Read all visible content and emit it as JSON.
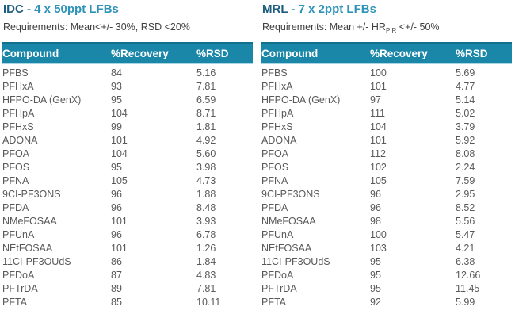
{
  "colors": {
    "header_bg": "#1b87a8",
    "header_top_edge": "#11718f",
    "header_bottom_edge": "#a9d6e3",
    "header_text": "#ffffff",
    "title_prefix": "#1d5e80",
    "title_rest": "#2e93b8",
    "requirements_text": "#3f3f3f",
    "body_text": "#595959",
    "background": "#ffffff"
  },
  "columns": [
    "Compound",
    "%Recovery",
    "%RSD"
  ],
  "tables": [
    {
      "title_prefix": "IDC",
      "title_rest": " - 4 x 50ppt LFBs",
      "requirements": {
        "pre": "Requirements: Mean<+/- 30%, RSD <20%",
        "sub": "",
        "post": ""
      },
      "columns": [
        "Compound",
        "%Recovery",
        "%RSD"
      ],
      "rows": [
        [
          "PFBS",
          "84",
          "5.16"
        ],
        [
          "PFHxA",
          "93",
          "7.81"
        ],
        [
          "HFPO-DA (GenX)",
          "95",
          "6.59"
        ],
        [
          "PFHpA",
          "104",
          "8.71"
        ],
        [
          "PFHxS",
          "99",
          "1.81"
        ],
        [
          "ADONA",
          "101",
          "4.92"
        ],
        [
          "PFOA",
          "104",
          "5.60"
        ],
        [
          "PFOS",
          "95",
          "3.98"
        ],
        [
          "PFNA",
          "105",
          "4.73"
        ],
        [
          "9CI-PF3ONS",
          "96",
          "1.88"
        ],
        [
          "PFDA",
          "96",
          "8.48"
        ],
        [
          "NMeFOSAA",
          "101",
          "3.93"
        ],
        [
          "PFUnA",
          "96",
          "6.78"
        ],
        [
          "NEtFOSAA",
          "101",
          "1.26"
        ],
        [
          "11CI-PF3OUdS",
          "86",
          "1.84"
        ],
        [
          "PFDoA",
          "87",
          "4.83"
        ],
        [
          "PFTrDA",
          "89",
          "7.81"
        ],
        [
          "PFTA",
          "85",
          "10.11"
        ]
      ]
    },
    {
      "title_prefix": "MRL",
      "title_rest": " - 7 x 2ppt LFBs",
      "requirements": {
        "pre": "Requirements: Mean +/- HR",
        "sub": "PIR",
        "post": " <+/- 50%"
      },
      "columns": [
        "Compound",
        "%Recovery",
        "%RSD"
      ],
      "rows": [
        [
          "PFBS",
          "100",
          "5.69"
        ],
        [
          "PFHxA",
          "101",
          "4.77"
        ],
        [
          "HFPO-DA (GenX)",
          "97",
          "5.14"
        ],
        [
          "PFHpA",
          "111",
          "5.02"
        ],
        [
          "PFHxS",
          "104",
          "3.79"
        ],
        [
          "ADONA",
          "101",
          "5.92"
        ],
        [
          "PFOA",
          "112",
          "8.08"
        ],
        [
          "PFOS",
          "102",
          "2.24"
        ],
        [
          "PFNA",
          "105",
          "7.59"
        ],
        [
          "9CI-PF3ONS",
          "96",
          "2.95"
        ],
        [
          "PFDA",
          "96",
          "8.52"
        ],
        [
          "NMeFOSAA",
          "98",
          "5.56"
        ],
        [
          "PFUnA",
          "100",
          "5.47"
        ],
        [
          "NEtFOSAA",
          "103",
          "4.21"
        ],
        [
          "11CI-PF3OUdS",
          "95",
          "6.38"
        ],
        [
          "PFDoA",
          "95",
          "12.66"
        ],
        [
          "PFTrDA",
          "95",
          "11.45"
        ],
        [
          "PFTA",
          "92",
          "5.99"
        ]
      ]
    }
  ]
}
